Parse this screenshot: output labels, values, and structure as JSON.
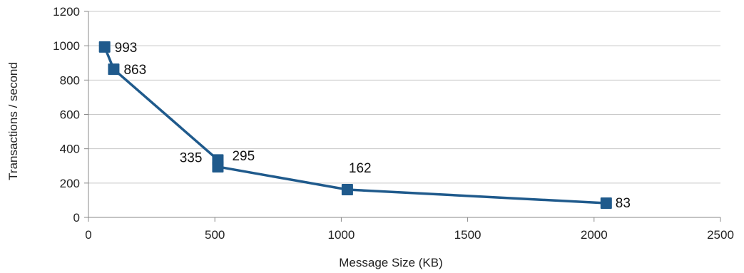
{
  "chart_data": {
    "type": "line",
    "xlabel": "Message Size (KB)",
    "ylabel": "Transactions / second",
    "xlim": [
      0,
      2500
    ],
    "ylim": [
      0,
      1200
    ],
    "xticks": [
      "0",
      "500",
      "1000",
      "1500",
      "2000",
      "2500"
    ],
    "yticks": [
      "0",
      "200",
      "400",
      "600",
      "800",
      "1000",
      "1200"
    ],
    "grid": "horizontal",
    "series": [
      {
        "color": "#1f5a8c",
        "marker": "square",
        "points": [
          {
            "x": 64,
            "y": 993,
            "label": "993"
          },
          {
            "x": 100,
            "y": 863,
            "label": "863"
          },
          {
            "x": 512,
            "y": 335,
            "label": "335"
          },
          {
            "x": 512,
            "y": 295,
            "label": "295"
          },
          {
            "x": 1024,
            "y": 162,
            "label": "162"
          },
          {
            "x": 2048,
            "y": 83,
            "label": "83"
          }
        ]
      }
    ]
  }
}
